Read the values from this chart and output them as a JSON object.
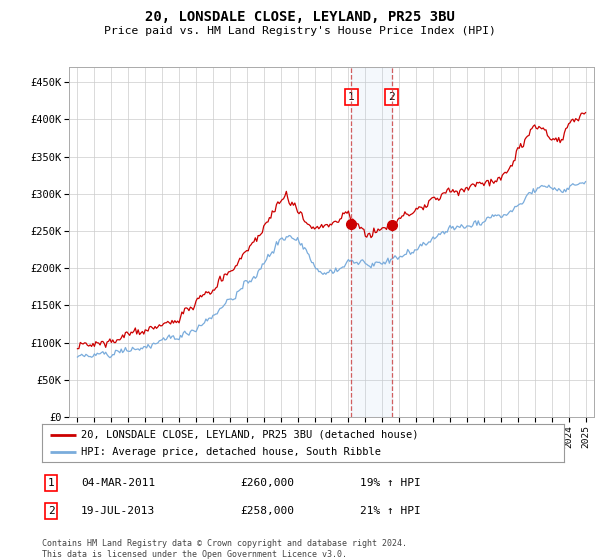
{
  "title": "20, LONSDALE CLOSE, LEYLAND, PR25 3BU",
  "subtitle": "Price paid vs. HM Land Registry's House Price Index (HPI)",
  "legend_line1": "20, LONSDALE CLOSE, LEYLAND, PR25 3BU (detached house)",
  "legend_line2": "HPI: Average price, detached house, South Ribble",
  "transaction1_label": "1",
  "transaction1_date": "04-MAR-2011",
  "transaction1_price": "£260,000",
  "transaction1_hpi": "19% ↑ HPI",
  "transaction2_label": "2",
  "transaction2_date": "19-JUL-2013",
  "transaction2_price": "£258,000",
  "transaction2_hpi": "21% ↑ HPI",
  "footer": "Contains HM Land Registry data © Crown copyright and database right 2024.\nThis data is licensed under the Open Government Licence v3.0.",
  "hpi_color": "#7aacdc",
  "price_color": "#cc0000",
  "marker1_x": 2011.17,
  "marker1_y": 260000,
  "marker2_x": 2013.55,
  "marker2_y": 258000,
  "ylim_min": 0,
  "ylim_max": 470000,
  "xlim_min": 1994.5,
  "xlim_max": 2025.5,
  "background_color": "#ffffff",
  "grid_color": "#cccccc",
  "yticks": [
    0,
    50000,
    100000,
    150000,
    200000,
    250000,
    300000,
    350000,
    400000,
    450000
  ],
  "ytick_labels": [
    "£0",
    "£50K",
    "£100K",
    "£150K",
    "£200K",
    "£250K",
    "£300K",
    "£350K",
    "£400K",
    "£450K"
  ]
}
